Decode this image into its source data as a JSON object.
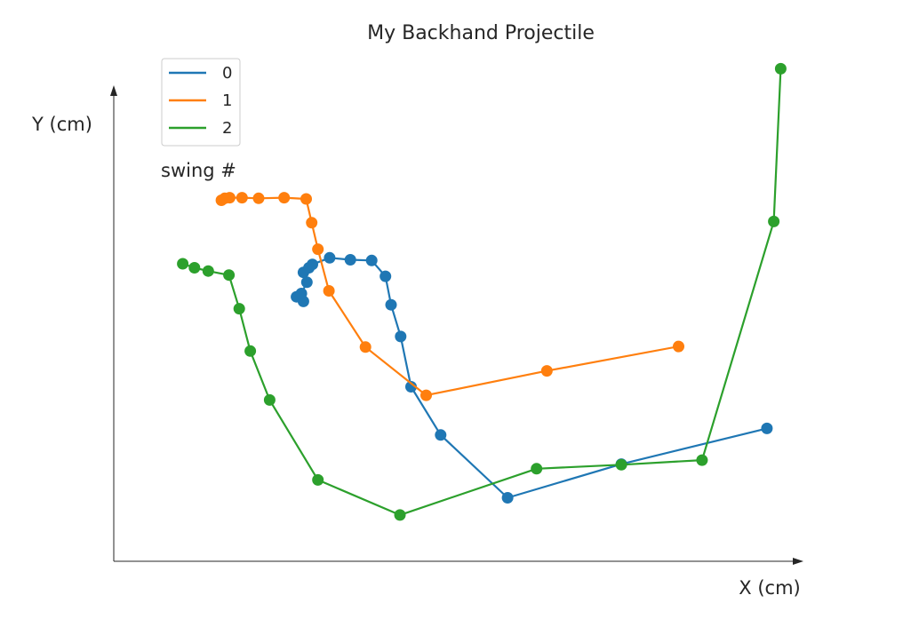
{
  "chart_data": {
    "type": "line",
    "title": "My Backhand Projectile",
    "xlabel": "X (cm)",
    "ylabel": "Y (cm)",
    "xlim": [
      0,
      1000
    ],
    "ylim": [
      0,
      720
    ],
    "grid": false,
    "legend": {
      "title": "swing #",
      "placement": "top-left"
    },
    "series": [
      {
        "name": "0",
        "color": "#1f77b4",
        "points": [
          [
            265,
            400
          ],
          [
            275,
            393
          ],
          [
            272,
            405
          ],
          [
            280,
            422
          ],
          [
            275,
            437
          ],
          [
            283,
            444
          ],
          [
            288,
            449
          ],
          [
            313,
            459
          ],
          [
            343,
            456
          ],
          [
            374,
            455
          ],
          [
            394,
            431
          ],
          [
            402,
            388
          ],
          [
            416,
            340
          ],
          [
            431,
            264
          ],
          [
            474,
            191
          ],
          [
            571,
            96
          ],
          [
            736,
            147
          ],
          [
            947,
            201
          ]
        ]
      },
      {
        "name": "1",
        "color": "#ff7f0e",
        "points": [
          [
            156,
            546
          ],
          [
            161,
            549
          ],
          [
            168,
            550
          ],
          [
            186,
            550
          ],
          [
            210,
            549
          ],
          [
            247,
            550
          ],
          [
            279,
            548
          ],
          [
            287,
            512
          ],
          [
            296,
            472
          ],
          [
            312,
            409
          ],
          [
            365,
            324
          ],
          [
            453,
            251
          ],
          [
            628,
            288
          ],
          [
            819,
            325
          ]
        ]
      },
      {
        "name": "2",
        "color": "#2ca02c",
        "points": [
          [
            100,
            450
          ],
          [
            117,
            444
          ],
          [
            137,
            439
          ],
          [
            167,
            433
          ],
          [
            182,
            382
          ],
          [
            198,
            318
          ],
          [
            226,
            244
          ],
          [
            296,
            123
          ],
          [
            415,
            70
          ],
          [
            613,
            140
          ],
          [
            736,
            146
          ],
          [
            853,
            153
          ],
          [
            957,
            514
          ],
          [
            967,
            745
          ]
        ]
      }
    ]
  }
}
